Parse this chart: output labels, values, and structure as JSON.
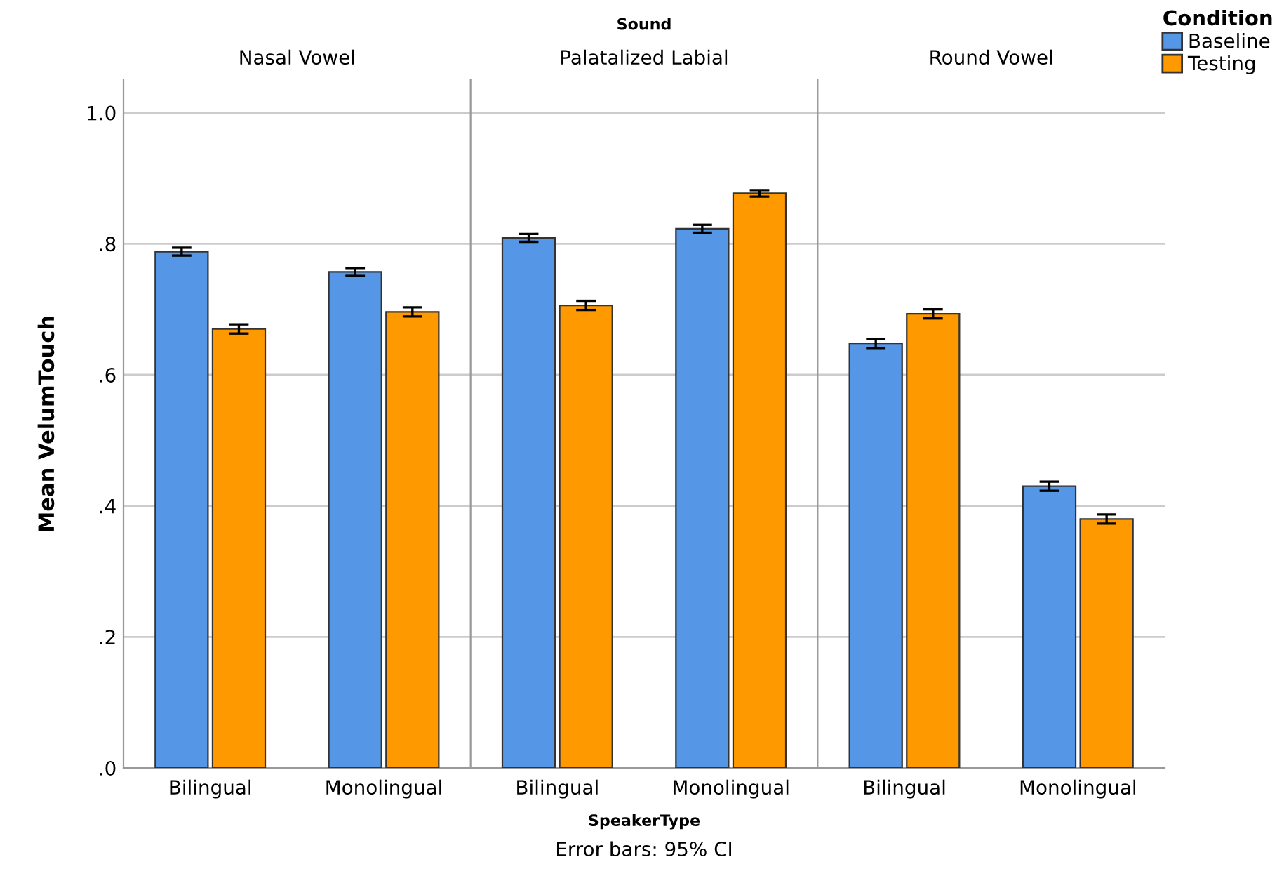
{
  "chart_data": [
    {
      "type": "bar",
      "title": "Nasal Vowel",
      "ylabel": "Mean VelumTouch",
      "categories": [
        "Bilingual",
        "Monolingual"
      ],
      "series": [
        {
          "color": "#5596e6",
          "values": [
            0.788,
            0.757
          ],
          "errors": [
            0.006,
            0.006
          ]
        },
        {
          "color": "#ff9900",
          "values": [
            0.67,
            0.696
          ],
          "errors": [
            0.007,
            0.007
          ]
        }
      ],
      "ylim": [
        0,
        1.05
      ],
      "yticks": [
        {
          "value": 0,
          "label": ".0"
        },
        {
          "value": 0.2,
          "label": ".2"
        },
        {
          "value": 0.4,
          "label": ".4"
        },
        {
          "value": 0.6,
          "label": ".6"
        },
        {
          "value": 0.8,
          "label": ".8"
        },
        {
          "value": 1.0,
          "label": "1.0"
        }
      ],
      "grid": "y"
    },
    {
      "type": "bar",
      "title": "Palatalized Labial",
      "xlabel": "SpeakerType",
      "annotations": [
        "Sound",
        "Error bars: 95% CI"
      ],
      "categories": [
        "Bilingual",
        "Monolingual"
      ],
      "series": [
        {
          "color": "#5596e6",
          "values": [
            0.809,
            0.823
          ],
          "errors": [
            0.006,
            0.006
          ]
        },
        {
          "color": "#ff9900",
          "values": [
            0.706,
            0.877
          ],
          "errors": [
            0.007,
            0.005
          ]
        }
      ],
      "ylim": [
        0,
        1.05
      ],
      "yticks": [
        0,
        0.2,
        0.4,
        0.6,
        0.8,
        1.0
      ],
      "grid": "y",
      "tick_labels": "x"
    },
    {
      "type": "bar",
      "title": "Round Vowel",
      "legend_title": "Condition",
      "legend": "top right",
      "categories": [
        "Bilingual",
        "Monolingual"
      ],
      "series": [
        {
          "name": "Baseline",
          "color": "#5596e6",
          "values": [
            0.648,
            0.43
          ],
          "errors": [
            0.007,
            0.007
          ]
        },
        {
          "name": "Testing",
          "color": "#ff9900",
          "values": [
            0.693,
            0.38
          ],
          "errors": [
            0.007,
            0.007
          ]
        }
      ],
      "ylim": [
        0,
        1.05
      ],
      "yticks": [
        0,
        0.2,
        0.4,
        0.6,
        0.8,
        1.0
      ],
      "grid": "y",
      "tick_labels": "x"
    }
  ]
}
